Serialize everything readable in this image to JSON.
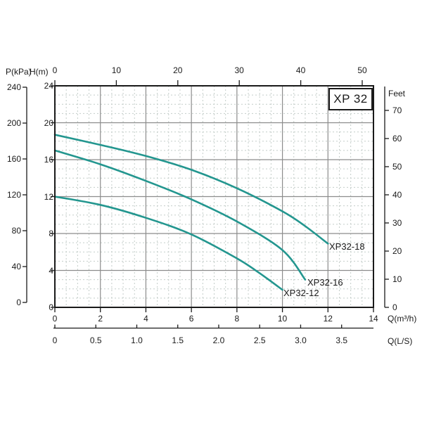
{
  "page": {
    "background": "#ffffff"
  },
  "title_box": {
    "label": "XP 32"
  },
  "chart_data": {
    "type": "line",
    "title": "XP 32",
    "grid": {
      "major_on": true,
      "minor_on": true,
      "major_color": "#8c8c8c",
      "minor_color": "#c4cdc9",
      "border_color": "#1a1a1a"
    },
    "curve_color": "#23968f",
    "axes": {
      "top_flow": {
        "position": "top",
        "ticks": [
          0,
          10,
          20,
          30,
          40,
          50
        ]
      },
      "pressure": {
        "position": "left-outer",
        "label": "P(kPa)",
        "ticks": [
          240,
          200,
          160,
          120,
          80,
          40,
          0
        ]
      },
      "head": {
        "position": "left",
        "label": "H(m)",
        "range": [
          0,
          24
        ],
        "major_ticks": [
          24,
          20,
          16,
          12,
          8,
          4,
          0
        ],
        "minor_step": 1
      },
      "feet": {
        "position": "right",
        "label": "Feet",
        "ticks": [
          70,
          60,
          50,
          40,
          30,
          20,
          10,
          0
        ],
        "meters_per_foot": 0.3048
      },
      "flow_m3h": {
        "position": "bottom",
        "label": "Q(m³/h)",
        "range": [
          0,
          14
        ],
        "major_ticks": [
          0,
          2,
          4,
          6,
          8,
          10,
          12,
          14
        ],
        "minor_step": 0.5
      },
      "flow_ls": {
        "position": "bottom-outer",
        "label": "Q(L/S)",
        "ticks": [
          "0",
          "0.5",
          "1.0",
          "1.5",
          "2.0",
          "2.5",
          "3.0",
          "3.5"
        ],
        "m3h_per_unit": 3.6
      }
    },
    "series": [
      {
        "name": "XP32-18",
        "x_unit": "m3/h",
        "y_unit": "m",
        "points": [
          [
            0,
            18.7
          ],
          [
            2,
            17.6
          ],
          [
            4,
            16.4
          ],
          [
            6,
            14.9
          ],
          [
            8,
            12.9
          ],
          [
            10,
            10.4
          ],
          [
            11,
            8.8
          ],
          [
            12,
            6.9
          ]
        ]
      },
      {
        "name": "XP32-16",
        "x_unit": "m3/h",
        "y_unit": "m",
        "points": [
          [
            0,
            17.0
          ],
          [
            2,
            15.5
          ],
          [
            4,
            13.7
          ],
          [
            6,
            11.7
          ],
          [
            8,
            9.3
          ],
          [
            10,
            6.2
          ],
          [
            11,
            3.0
          ]
        ]
      },
      {
        "name": "XP32-12",
        "x_unit": "m3/h",
        "y_unit": "m",
        "points": [
          [
            0,
            12.0
          ],
          [
            2,
            11.1
          ],
          [
            4,
            9.7
          ],
          [
            6,
            7.9
          ],
          [
            8,
            5.3
          ],
          [
            9,
            3.7
          ],
          [
            10,
            1.9
          ]
        ]
      }
    ]
  }
}
